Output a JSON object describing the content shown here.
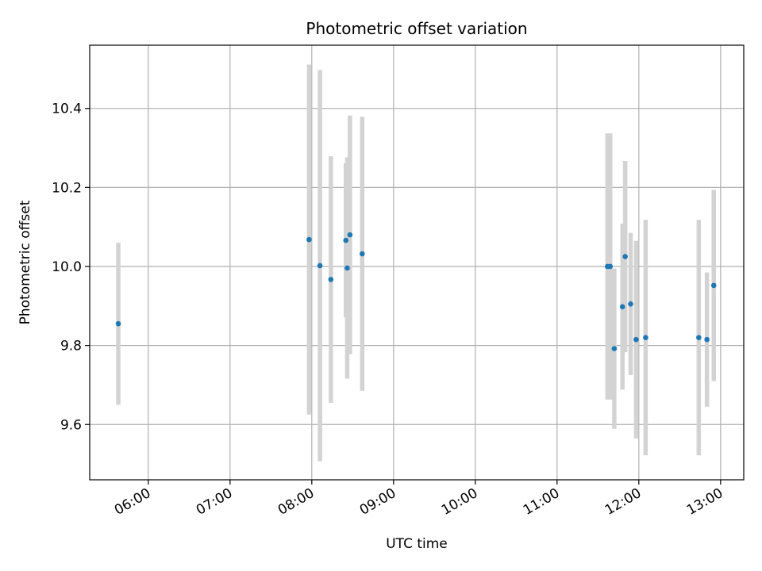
{
  "chart_data": {
    "type": "scatter",
    "title": "Photometric offset variation",
    "xlabel": "UTC time",
    "ylabel": "Photometric offset",
    "x_unit": "time of day (HH:MM, UTC)",
    "xlim": [
      "05:17",
      "13:17"
    ],
    "ylim": [
      9.46,
      10.56
    ],
    "x_ticks": [
      "06:00",
      "07:00",
      "08:00",
      "09:00",
      "10:00",
      "11:00",
      "12:00",
      "13:00"
    ],
    "y_ticks": [
      9.6,
      9.8,
      10.0,
      10.2,
      10.4
    ],
    "y_tick_labels": [
      "9.6",
      "9.8",
      "10.0",
      "10.2",
      "10.4"
    ],
    "grid": true,
    "legend": "none",
    "point_color": "#1f77b4",
    "errorbar_color": "#d3d3d3",
    "points": [
      {
        "time": "05:38",
        "y": 9.855,
        "err": 0.205
      },
      {
        "time": "07:58",
        "y": 10.068,
        "err": 0.443
      },
      {
        "time": "08:06",
        "y": 10.002,
        "err": 0.495
      },
      {
        "time": "08:14",
        "y": 9.967,
        "err": 0.312
      },
      {
        "time": "08:25",
        "y": 10.066,
        "err": 0.195
      },
      {
        "time": "08:26",
        "y": 9.996,
        "err": 0.28
      },
      {
        "time": "08:28",
        "y": 10.08,
        "err": 0.302
      },
      {
        "time": "08:37",
        "y": 10.032,
        "err": 0.347
      },
      {
        "time": "11:37",
        "y": 10.0,
        "err": 0.337
      },
      {
        "time": "11:39",
        "y": 10.0,
        "err": 0.337
      },
      {
        "time": "11:42",
        "y": 9.792,
        "err": 0.203
      },
      {
        "time": "11:48",
        "y": 9.898,
        "err": 0.21
      },
      {
        "time": "11:50",
        "y": 10.025,
        "err": 0.242
      },
      {
        "time": "11:54",
        "y": 9.905,
        "err": 0.18
      },
      {
        "time": "11:58",
        "y": 9.815,
        "err": 0.25
      },
      {
        "time": "12:05",
        "y": 9.82,
        "err": 0.298
      },
      {
        "time": "12:44",
        "y": 9.82,
        "err": 0.298
      },
      {
        "time": "12:50",
        "y": 9.815,
        "err": 0.17
      },
      {
        "time": "12:55",
        "y": 9.952,
        "err": 0.242
      }
    ]
  }
}
